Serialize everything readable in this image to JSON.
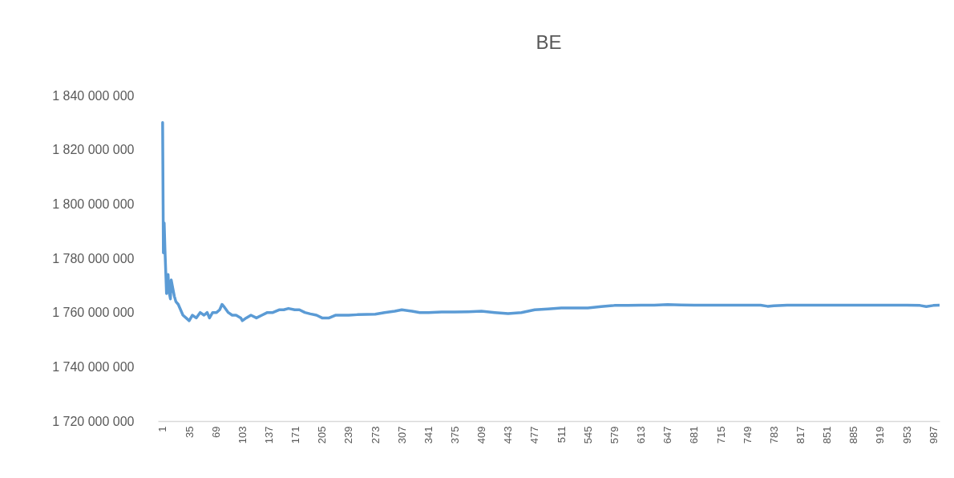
{
  "chart_data": {
    "type": "line",
    "title": "BE",
    "x": [
      1,
      2,
      3,
      4,
      5,
      6,
      8,
      9,
      11,
      12,
      14,
      16,
      18,
      21,
      24,
      27,
      31,
      35,
      39,
      44,
      49,
      54,
      58,
      61,
      65,
      70,
      74,
      77,
      80,
      85,
      90,
      95,
      101,
      103,
      108,
      114,
      121,
      128,
      135,
      142,
      150,
      156,
      162,
      170,
      176,
      183,
      190,
      198,
      205,
      214,
      222,
      230,
      239,
      250,
      262,
      273,
      285,
      298,
      307,
      320,
      330,
      341,
      358,
      375,
      392,
      409,
      426,
      443,
      460,
      477,
      494,
      511,
      528,
      545,
      562,
      579,
      596,
      613,
      630,
      647,
      664,
      681,
      698,
      715,
      732,
      749,
      766,
      775,
      783,
      800,
      817,
      834,
      851,
      868,
      885,
      902,
      919,
      936,
      953,
      970,
      978,
      987,
      995
    ],
    "series": [
      {
        "color": "#5b9bd5",
        "values": [
          1830000000,
          1782000000,
          1793000000,
          1783000000,
          1775000000,
          1767000000,
          1774000000,
          1768000000,
          1765000000,
          1772000000,
          1769000000,
          1766000000,
          1764000000,
          1763000000,
          1761000000,
          1759000000,
          1758000000,
          1757000000,
          1759000000,
          1758000000,
          1760000000,
          1759000000,
          1760000000,
          1758000000,
          1760000000,
          1760000000,
          1761000000,
          1763000000,
          1762000000,
          1760000000,
          1759000000,
          1759000000,
          1758000000,
          1757000000,
          1758000000,
          1759000000,
          1758000000,
          1759000000,
          1760000000,
          1760000000,
          1761000000,
          1761000000,
          1761500000,
          1761000000,
          1761000000,
          1760000000,
          1759500000,
          1759000000,
          1758000000,
          1758000000,
          1759000000,
          1759000000,
          1759000000,
          1759200000,
          1759300000,
          1759400000,
          1760000000,
          1760500000,
          1761000000,
          1760500000,
          1760000000,
          1760000000,
          1760200000,
          1760200000,
          1760300000,
          1760500000,
          1760000000,
          1759600000,
          1760000000,
          1761000000,
          1761300000,
          1761700000,
          1761700000,
          1761700000,
          1762200000,
          1762600000,
          1762600000,
          1762700000,
          1762700000,
          1762900000,
          1762800000,
          1762700000,
          1762700000,
          1762700000,
          1762700000,
          1762700000,
          1762700000,
          1762300000,
          1762500000,
          1762700000,
          1762700000,
          1762700000,
          1762700000,
          1762700000,
          1762700000,
          1762700000,
          1762700000,
          1762700000,
          1762700000,
          1762600000,
          1762200000,
          1762600000,
          1762700000
        ]
      }
    ],
    "xlim": [
      -5,
      995
    ],
    "xticks": [
      1,
      35,
      69,
      103,
      137,
      171,
      205,
      239,
      273,
      307,
      341,
      375,
      409,
      443,
      477,
      511,
      545,
      579,
      613,
      647,
      681,
      715,
      749,
      783,
      817,
      851,
      885,
      919,
      953,
      987
    ],
    "ylim": [
      1720000000,
      1840000000
    ],
    "yticks": [
      {
        "value": 1720000000,
        "label": "1 720 000 000"
      },
      {
        "value": 1740000000,
        "label": "1 740 000 000"
      },
      {
        "value": 1760000000,
        "label": "1 760 000 000"
      },
      {
        "value": 1780000000,
        "label": "1 780 000 000"
      },
      {
        "value": 1800000000,
        "label": "1 800 000 000"
      },
      {
        "value": 1820000000,
        "label": "1 820 000 000"
      },
      {
        "value": 1840000000,
        "label": "1 840 000 000"
      }
    ],
    "grid": false
  }
}
